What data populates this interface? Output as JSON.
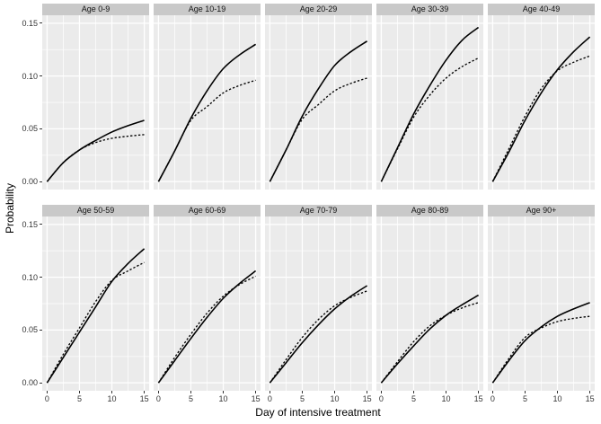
{
  "chart_data": {
    "type": "line",
    "title": "",
    "xlabel": "Day of intensive treatment",
    "ylabel": "Probability",
    "x": [
      0,
      2.5,
      5,
      7.5,
      10,
      12.5,
      15
    ],
    "xlim": [
      -0.75,
      15.75
    ],
    "ylim": [
      -0.0075,
      0.1575
    ],
    "x_major_ticks": [
      0,
      5,
      10,
      15
    ],
    "x_tick_labels": [
      "0",
      "5",
      "10",
      "15"
    ],
    "x_minor_ticks": [
      2.5,
      7.5,
      12.5
    ],
    "y_major_ticks": [
      0,
      0.05,
      0.1,
      0.15
    ],
    "y_tick_labels": [
      "0.00",
      "0.05",
      "0.10",
      "0.15"
    ],
    "y_minor_ticks": [
      0.025,
      0.075,
      0.125
    ],
    "grid": true,
    "legend_position": "none",
    "facet_rows": 2,
    "facet_cols": 5,
    "facets": [
      {
        "label": "Age 0-9",
        "series": [
          {
            "name": "solid",
            "linetype": "solid",
            "values": [
              0,
              0.018,
              0.03,
              0.039,
              0.047,
              0.053,
              0.058
            ]
          },
          {
            "name": "dashed",
            "linetype": "dashed",
            "values": [
              0,
              0.018,
              0.03,
              0.037,
              0.041,
              0.043,
              0.0445
            ]
          }
        ]
      },
      {
        "label": "Age 10-19",
        "series": [
          {
            "name": "solid",
            "linetype": "solid",
            "values": [
              0,
              0.029,
              0.06,
              0.086,
              0.107,
              0.12,
              0.13
            ]
          },
          {
            "name": "dashed",
            "linetype": "dashed",
            "values": [
              0,
              0.029,
              0.058,
              0.071,
              0.084,
              0.091,
              0.096
            ]
          }
        ]
      },
      {
        "label": "Age 20-29",
        "series": [
          {
            "name": "solid",
            "linetype": "solid",
            "values": [
              0,
              0.03,
              0.062,
              0.088,
              0.11,
              0.123,
              0.133
            ]
          },
          {
            "name": "dashed",
            "linetype": "dashed",
            "values": [
              0,
              0.03,
              0.059,
              0.073,
              0.086,
              0.093,
              0.098
            ]
          }
        ]
      },
      {
        "label": "Age 30-39",
        "series": [
          {
            "name": "solid",
            "linetype": "solid",
            "values": [
              0,
              0.032,
              0.064,
              0.091,
              0.115,
              0.134,
              0.146
            ]
          },
          {
            "name": "dashed",
            "linetype": "dashed",
            "values": [
              0,
              0.031,
              0.061,
              0.082,
              0.098,
              0.109,
              0.117
            ]
          }
        ]
      },
      {
        "label": "Age 40-49",
        "series": [
          {
            "name": "solid",
            "linetype": "solid",
            "values": [
              0,
              0.028,
              0.058,
              0.084,
              0.106,
              0.123,
              0.137
            ]
          },
          {
            "name": "dashed",
            "linetype": "dashed",
            "values": [
              0,
              0.031,
              0.062,
              0.088,
              0.105,
              0.113,
              0.119
            ]
          }
        ]
      },
      {
        "label": "Age 50-59",
        "series": [
          {
            "name": "solid",
            "linetype": "solid",
            "values": [
              0,
              0.024,
              0.048,
              0.072,
              0.096,
              0.113,
              0.127
            ]
          },
          {
            "name": "dashed",
            "linetype": "dashed",
            "values": [
              0,
              0.027,
              0.052,
              0.077,
              0.097,
              0.106,
              0.114
            ]
          }
        ]
      },
      {
        "label": "Age 60-69",
        "series": [
          {
            "name": "solid",
            "linetype": "solid",
            "values": [
              0,
              0.021,
              0.042,
              0.062,
              0.08,
              0.094,
              0.106
            ]
          },
          {
            "name": "dashed",
            "linetype": "dashed",
            "values": [
              0,
              0.024,
              0.046,
              0.066,
              0.082,
              0.093,
              0.101
            ]
          }
        ]
      },
      {
        "label": "Age 70-79",
        "series": [
          {
            "name": "solid",
            "linetype": "solid",
            "values": [
              0,
              0.019,
              0.038,
              0.055,
              0.07,
              0.082,
              0.092
            ]
          },
          {
            "name": "dashed",
            "linetype": "dashed",
            "values": [
              0,
              0.022,
              0.043,
              0.06,
              0.073,
              0.081,
              0.087
            ]
          }
        ]
      },
      {
        "label": "Age 80-89",
        "series": [
          {
            "name": "solid",
            "linetype": "solid",
            "values": [
              0,
              0.018,
              0.035,
              0.051,
              0.064,
              0.074,
              0.083
            ]
          },
          {
            "name": "dashed",
            "linetype": "dashed",
            "values": [
              0,
              0.02,
              0.039,
              0.054,
              0.064,
              0.071,
              0.076
            ]
          }
        ]
      },
      {
        "label": "Age 90+",
        "series": [
          {
            "name": "solid",
            "linetype": "solid",
            "values": [
              0,
              0.021,
              0.04,
              0.053,
              0.063,
              0.07,
              0.076
            ]
          },
          {
            "name": "dashed",
            "linetype": "dashed",
            "values": [
              0,
              0.023,
              0.043,
              0.052,
              0.058,
              0.061,
              0.063
            ]
          }
        ]
      }
    ]
  },
  "style": {
    "panel_bg": "#EBEBEB",
    "strip_bg": "#C9C9C9",
    "grid_color": "#FFFFFF",
    "line_color": "#000000",
    "tick_color": "#333333",
    "text_color": "#000000"
  }
}
